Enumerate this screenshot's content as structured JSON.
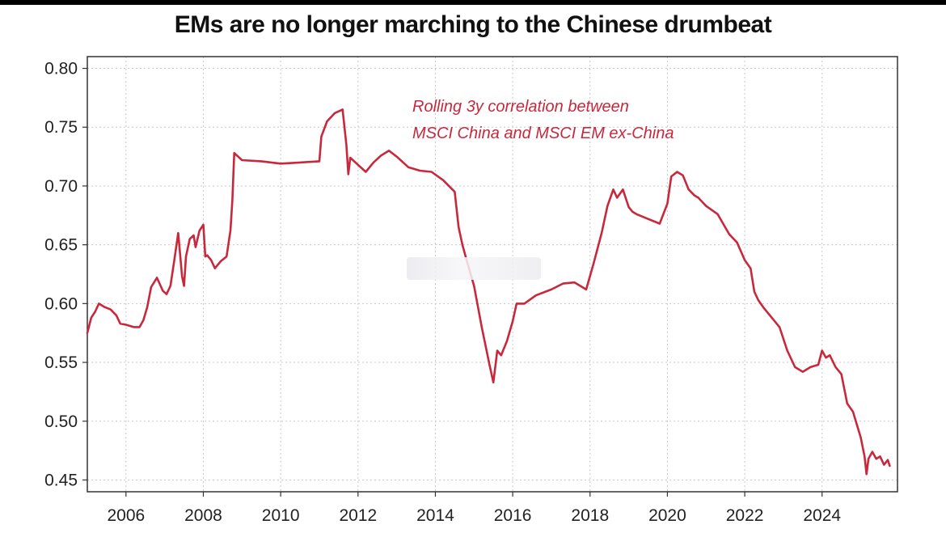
{
  "chart_data": {
    "type": "line",
    "title": "EMs are no longer marching to the Chinese drumbeat",
    "xlabel": "",
    "ylabel": "",
    "xlim": [
      2005.0,
      2025.95
    ],
    "ylim": [
      0.44,
      0.81
    ],
    "grid": true,
    "x_ticks": [
      2006,
      2008,
      2010,
      2012,
      2014,
      2016,
      2018,
      2020,
      2022,
      2024
    ],
    "x_tick_labels": [
      "2006",
      "2008",
      "2010",
      "2012",
      "2014",
      "2016",
      "2018",
      "2020",
      "2022",
      "2024"
    ],
    "y_ticks": [
      0.45,
      0.5,
      0.55,
      0.6,
      0.65,
      0.7,
      0.75,
      0.8
    ],
    "y_tick_labels": [
      "0.45",
      "0.50",
      "0.55",
      "0.60",
      "0.65",
      "0.70",
      "0.75",
      "0.80"
    ],
    "annotation": [
      "Rolling 3y correlation between",
      "MSCI China and MSCI EM ex-China"
    ],
    "line_color": "#c8283c",
    "series": [
      {
        "name": "Rolling 3y correlation between MSCI China and MSCI EM ex-China",
        "x": [
          2005.0,
          2005.1,
          2005.2,
          2005.3,
          2005.45,
          2005.6,
          2005.75,
          2005.85,
          2006.0,
          2006.2,
          2006.35,
          2006.45,
          2006.55,
          2006.65,
          2006.8,
          2006.95,
          2007.05,
          2007.15,
          2007.25,
          2007.35,
          2007.45,
          2007.5,
          2007.55,
          2007.65,
          2007.75,
          2007.8,
          2007.9,
          2008.0,
          2008.05,
          2008.1,
          2008.2,
          2008.3,
          2008.45,
          2008.6,
          2008.7,
          2008.75,
          2008.8,
          2009.0,
          2009.5,
          2010.0,
          2010.5,
          2011.0,
          2011.05,
          2011.2,
          2011.4,
          2011.6,
          2011.7,
          2011.75,
          2011.8,
          2012.0,
          2012.2,
          2012.4,
          2012.6,
          2012.8,
          2013.0,
          2013.3,
          2013.6,
          2013.9,
          2014.2,
          2014.5,
          2014.6,
          2014.7,
          2014.8,
          2015.0,
          2015.2,
          2015.4,
          2015.5,
          2015.6,
          2015.7,
          2015.85,
          2016.0,
          2016.1,
          2016.3,
          2016.6,
          2017.0,
          2017.3,
          2017.6,
          2017.9,
          2018.1,
          2018.3,
          2018.45,
          2018.6,
          2018.7,
          2018.85,
          2019.0,
          2019.1,
          2019.2,
          2019.5,
          2019.8,
          2020.0,
          2020.1,
          2020.25,
          2020.4,
          2020.55,
          2020.7,
          2020.8,
          2021.0,
          2021.3,
          2021.6,
          2021.8,
          2022.0,
          2022.15,
          2022.25,
          2022.35,
          2022.5,
          2022.7,
          2022.9,
          2023.1,
          2023.3,
          2023.5,
          2023.7,
          2023.9,
          2024.0,
          2024.1,
          2024.2,
          2024.35,
          2024.5,
          2024.65,
          2024.8,
          2025.0,
          2025.1,
          2025.15,
          2025.2,
          2025.3,
          2025.4,
          2025.5,
          2025.6,
          2025.7,
          2025.75
        ],
        "values": [
          0.575,
          0.588,
          0.593,
          0.6,
          0.597,
          0.595,
          0.59,
          0.583,
          0.582,
          0.58,
          0.58,
          0.586,
          0.597,
          0.614,
          0.622,
          0.611,
          0.608,
          0.615,
          0.637,
          0.66,
          0.623,
          0.615,
          0.64,
          0.655,
          0.658,
          0.648,
          0.662,
          0.667,
          0.64,
          0.641,
          0.637,
          0.63,
          0.636,
          0.64,
          0.662,
          0.688,
          0.728,
          0.722,
          0.721,
          0.719,
          0.72,
          0.721,
          0.742,
          0.755,
          0.762,
          0.765,
          0.735,
          0.71,
          0.724,
          0.718,
          0.712,
          0.72,
          0.726,
          0.73,
          0.725,
          0.716,
          0.713,
          0.712,
          0.705,
          0.695,
          0.665,
          0.65,
          0.638,
          0.615,
          0.58,
          0.548,
          0.533,
          0.56,
          0.556,
          0.568,
          0.585,
          0.6,
          0.6,
          0.607,
          0.612,
          0.617,
          0.618,
          0.612,
          0.635,
          0.66,
          0.683,
          0.697,
          0.69,
          0.697,
          0.682,
          0.678,
          0.676,
          0.672,
          0.668,
          0.685,
          0.708,
          0.712,
          0.709,
          0.697,
          0.692,
          0.69,
          0.683,
          0.676,
          0.659,
          0.652,
          0.637,
          0.63,
          0.61,
          0.603,
          0.596,
          0.588,
          0.58,
          0.56,
          0.546,
          0.542,
          0.546,
          0.548,
          0.56,
          0.554,
          0.556,
          0.546,
          0.54,
          0.515,
          0.508,
          0.486,
          0.47,
          0.455,
          0.468,
          0.474,
          0.468,
          0.47,
          0.463,
          0.467,
          0.462
        ]
      }
    ]
  }
}
